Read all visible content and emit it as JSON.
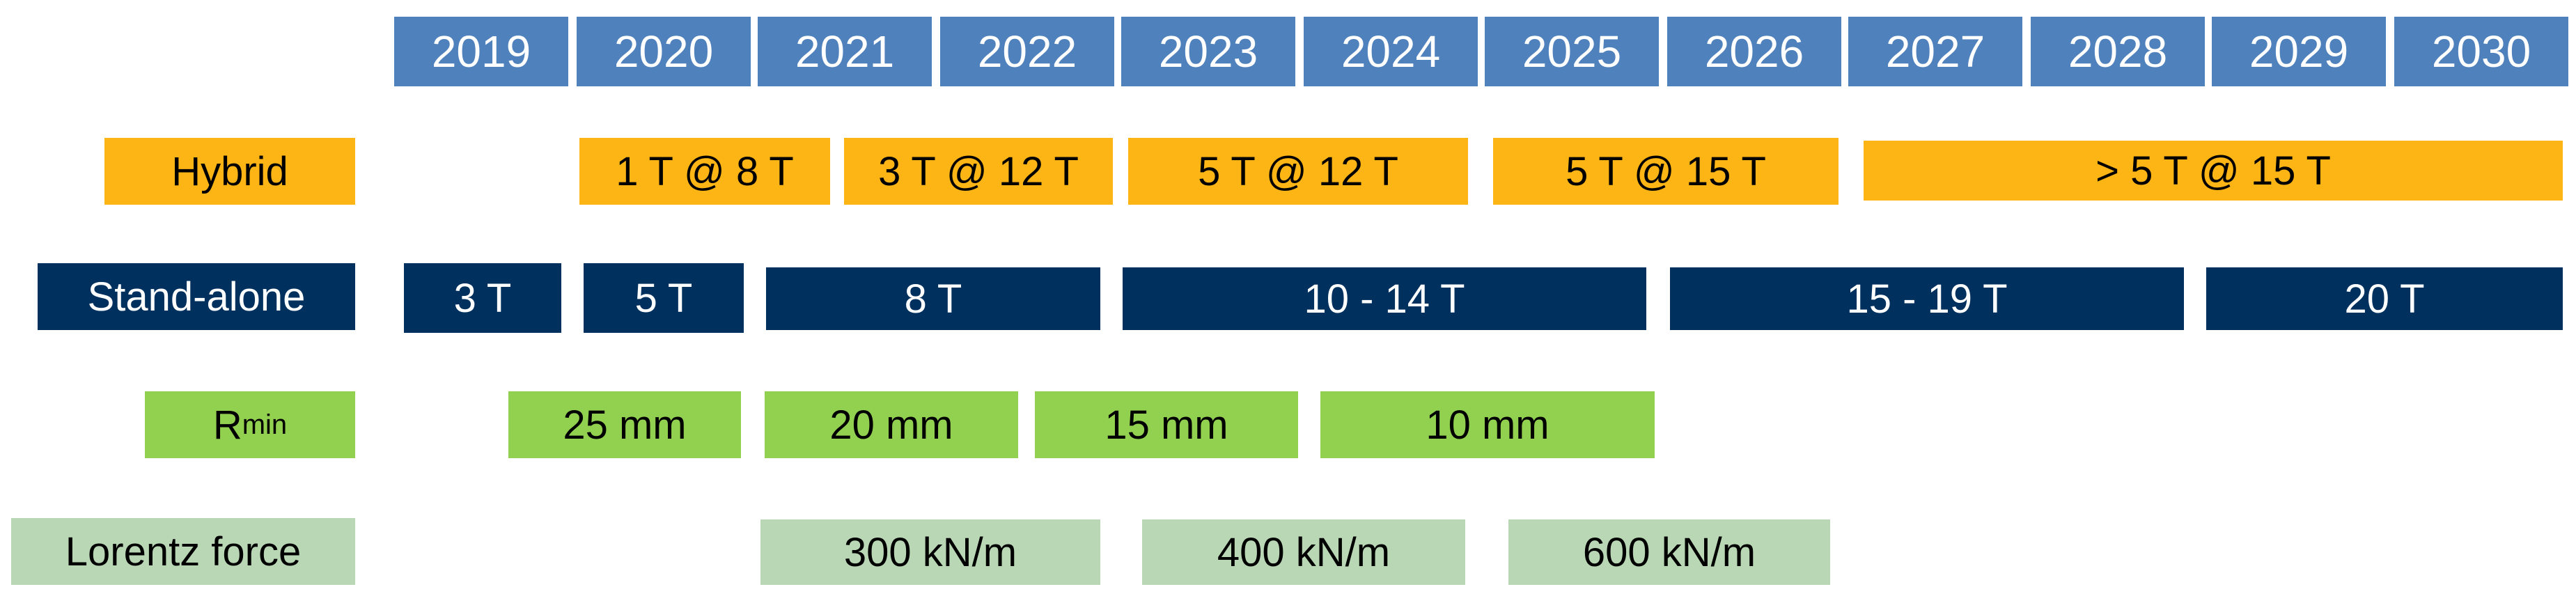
{
  "years": [
    "2019",
    "2020",
    "2021",
    "2022",
    "2023",
    "2024",
    "2025",
    "2026",
    "2027",
    "2028",
    "2029",
    "2030"
  ],
  "rows": {
    "hybrid": {
      "label": "Hybrid",
      "items": [
        "1 T @ 8 T",
        "3 T @ 12 T",
        "5 T @ 12 T",
        "5 T @ 15 T",
        "> 5 T @ 15 T"
      ]
    },
    "standalone": {
      "label": "Stand-alone",
      "items": [
        "3 T",
        "5 T",
        "8 T",
        "10 - 14 T",
        "15 - 19 T",
        "20 T"
      ]
    },
    "rmin": {
      "label_main": "R",
      "label_sub": "min",
      "items": [
        "25 mm",
        "20 mm",
        "15 mm",
        "10 mm"
      ]
    },
    "lorentz": {
      "label": "Lorentz force",
      "items": [
        "300 kN/m",
        "400 kN/m",
        "600 kN/m"
      ]
    }
  },
  "colors": {
    "year_header": "#4f81bd",
    "hybrid": "#fdb515",
    "standalone": "#00305e",
    "rmin": "#92d050",
    "lorentz": "#b9d7b5"
  }
}
